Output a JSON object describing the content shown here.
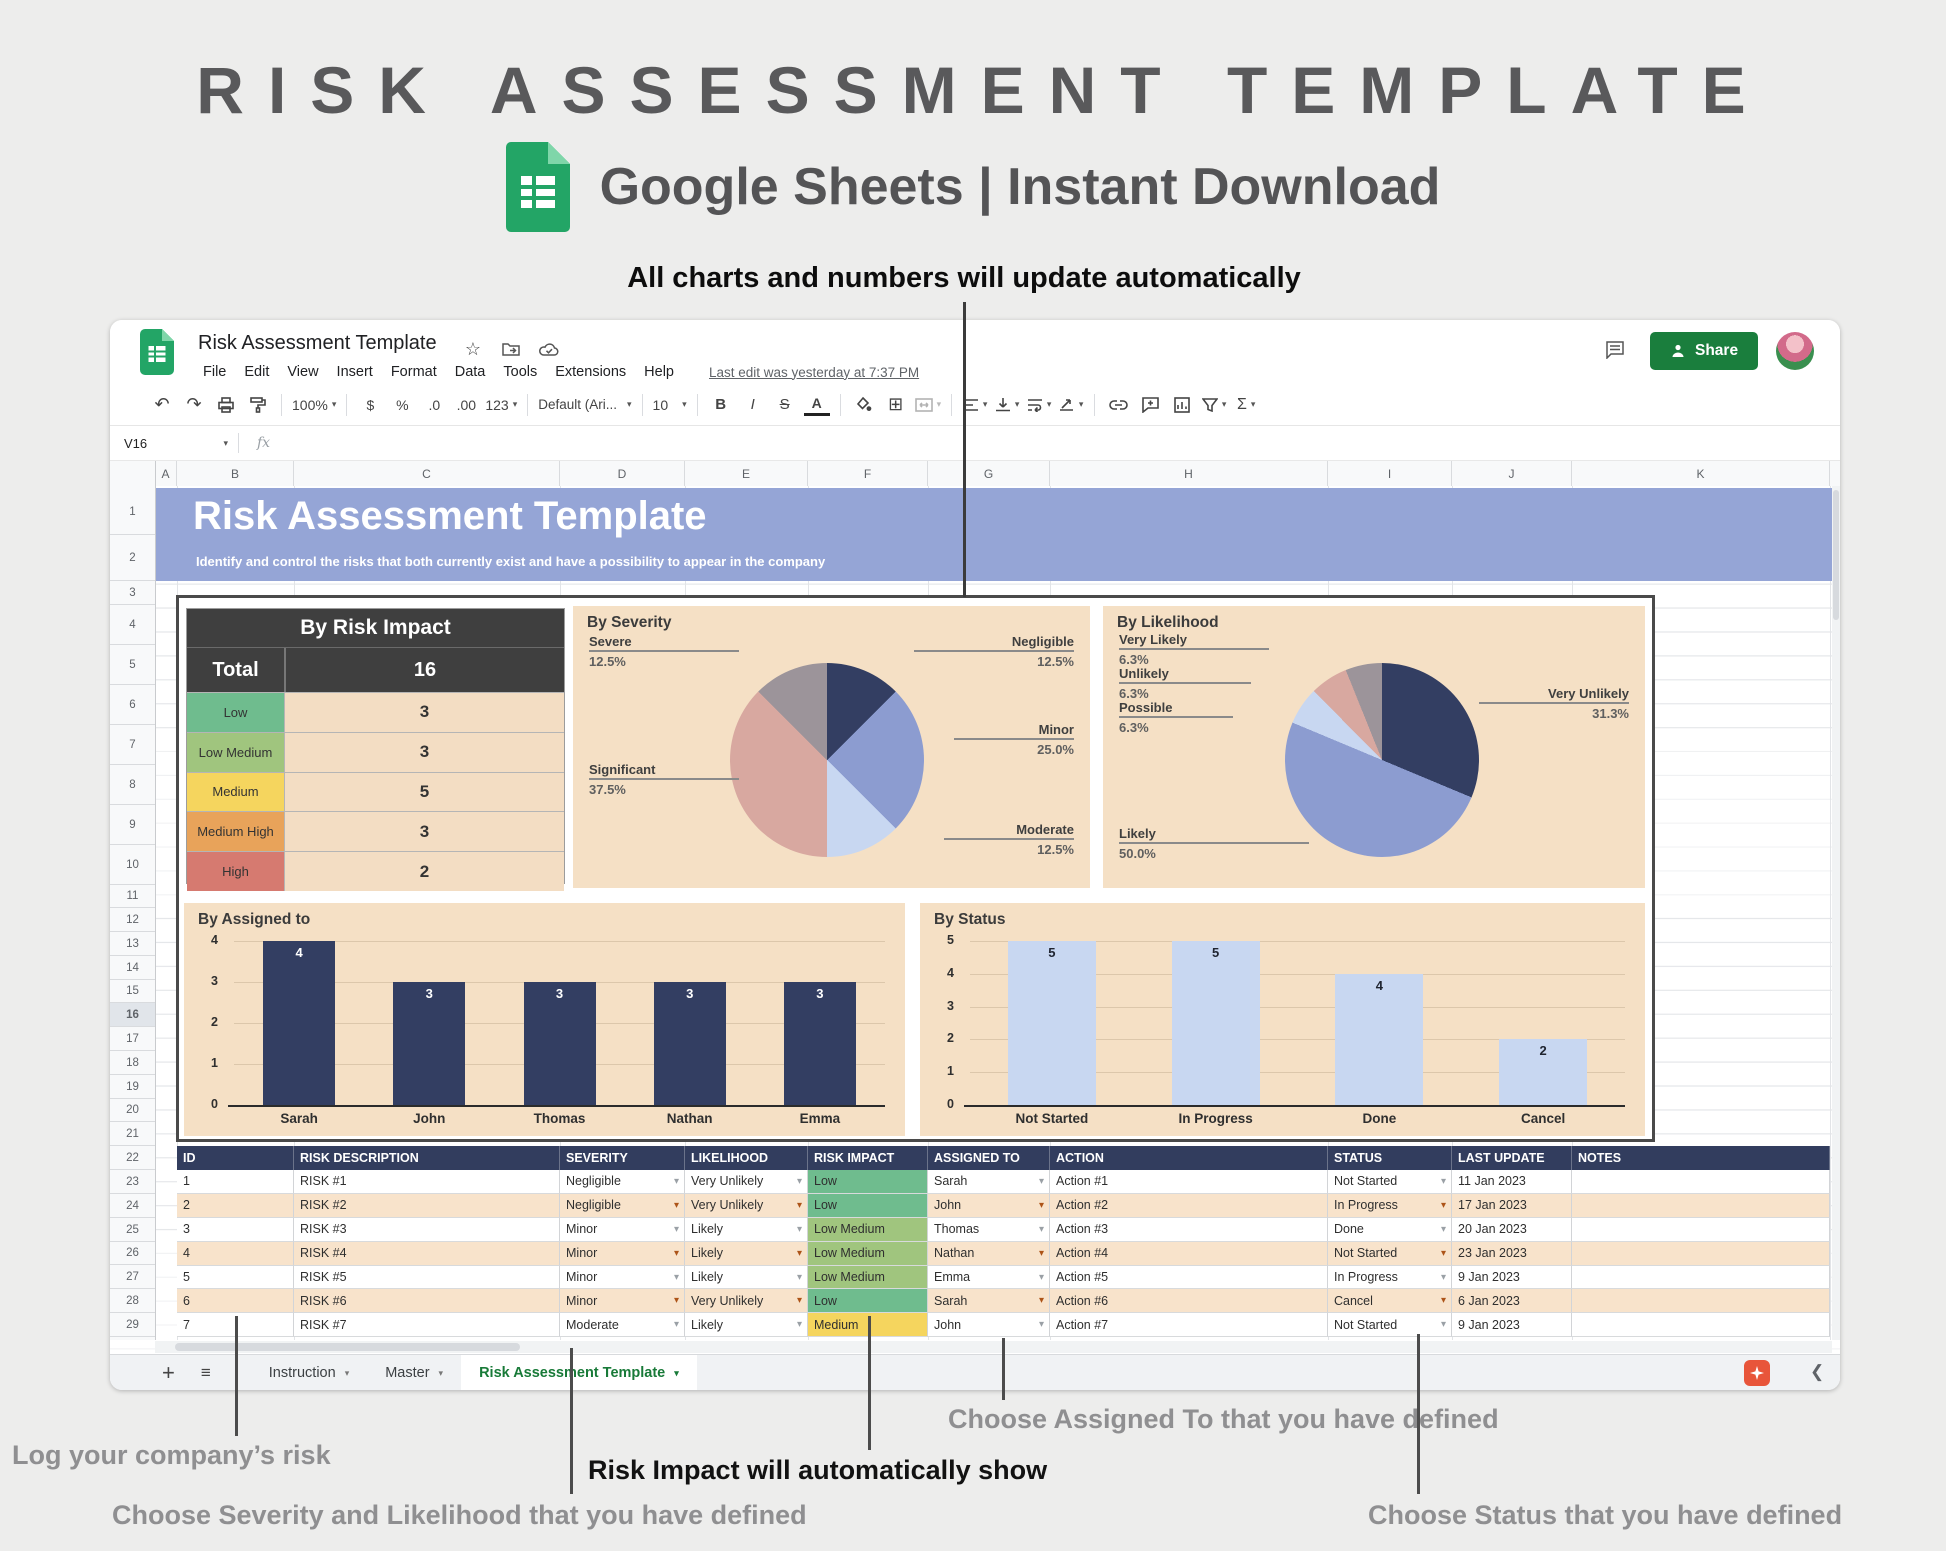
{
  "hero": {
    "title": "RISK ASSESSMENT TEMPLATE",
    "subtitle": "Google Sheets | Instant Download"
  },
  "annotations": {
    "top": "All charts and numbers will update automatically",
    "log_risk": "Log your company’s risk",
    "severity_note": "Choose Severity and Likelihood that you have defined",
    "impact_note": "Risk Impact will automatically show",
    "assigned_note": "Choose Assigned To that you have defined",
    "status_note": "Choose Status that you have defined"
  },
  "titlebar": {
    "doc_title": "Risk Assessment Template",
    "share": "Share"
  },
  "menubar": {
    "items": [
      "File",
      "Edit",
      "View",
      "Insert",
      "Format",
      "Data",
      "Tools",
      "Extensions",
      "Help"
    ],
    "last_edit": "Last edit was yesterday at 7:37 PM"
  },
  "toolbar": {
    "zoom": "100%",
    "currency": "$",
    "percent": "%",
    "dec_decimal": ".0",
    "inc_decimal": ".00",
    "more_formats": "123",
    "font": "Default (Ari...",
    "font_size": "10",
    "bold": "B",
    "italic": "I",
    "strike": "S",
    "text_color": "A",
    "functions": "Σ"
  },
  "formula_bar": {
    "name_box": "V16",
    "fx": "fx"
  },
  "grid": {
    "columns": [
      "A",
      "B",
      "C",
      "D",
      "E",
      "F",
      "G",
      "H",
      "I",
      "J",
      "K"
    ],
    "rows": [
      1,
      2,
      3,
      4,
      5,
      6,
      7,
      8,
      9,
      10,
      11,
      12,
      13,
      14,
      15,
      16,
      17,
      18,
      19,
      20,
      21,
      22,
      23,
      24,
      25,
      26,
      27,
      28,
      29
    ],
    "banner": {
      "title": "Risk Assessment Template",
      "subtitle": "Identify and control the risks that both currently exist and have a possibility to appear in the company"
    }
  },
  "impact_summary": {
    "title": "By Risk Impact",
    "total_label": "Total",
    "total_value": "16",
    "rows": [
      {
        "label": "Low",
        "value": "3",
        "color": "#6fbc8e"
      },
      {
        "label": "Low Medium",
        "value": "3",
        "color": "#a0c57e"
      },
      {
        "label": "Medium",
        "value": "5",
        "color": "#f5d55e"
      },
      {
        "label": "Medium High",
        "value": "3",
        "color": "#e8a35a"
      },
      {
        "label": "High",
        "value": "2",
        "color": "#d67a70"
      }
    ]
  },
  "chart_data": [
    {
      "type": "pie",
      "title": "By Severity",
      "labels": [
        "Negligible",
        "Minor",
        "Moderate",
        "Significant",
        "Severe"
      ],
      "values": [
        12.5,
        25.0,
        12.5,
        37.5,
        12.5
      ],
      "colors": [
        "#333e62",
        "#8c9cd0",
        "#c8d7f1",
        "#d8a8a0",
        "#9c949a"
      ],
      "callouts": [
        {
          "label": "Severe",
          "value": "12.5%"
        },
        {
          "label": "Negligible",
          "value": "12.5%"
        },
        {
          "label": "Minor",
          "value": "25.0%"
        },
        {
          "label": "Moderate",
          "value": "12.5%"
        },
        {
          "label": "Significant",
          "value": "37.5%"
        }
      ]
    },
    {
      "type": "pie",
      "title": "By Likelihood",
      "labels": [
        "Very Unlikely",
        "Likely",
        "Possible",
        "Unlikely",
        "Very Likely"
      ],
      "values": [
        31.3,
        50.0,
        6.3,
        6.3,
        6.3
      ],
      "colors": [
        "#333e62",
        "#8c9cd0",
        "#c8d7f1",
        "#d8a8a0",
        "#9c949a"
      ],
      "callouts": [
        {
          "label": "Very Likely",
          "value": "6.3%"
        },
        {
          "label": "Unlikely",
          "value": "6.3%"
        },
        {
          "label": "Possible",
          "value": "6.3%"
        },
        {
          "label": "Likely",
          "value": "50.0%"
        },
        {
          "label": "Very Unlikely",
          "value": "31.3%"
        }
      ]
    },
    {
      "type": "bar",
      "title": "By Assigned to",
      "categories": [
        "Sarah",
        "John",
        "Thomas",
        "Nathan",
        "Emma"
      ],
      "values": [
        4,
        3,
        3,
        3,
        3
      ],
      "ylim": [
        0,
        4
      ],
      "yticks": [
        0,
        1,
        2,
        3,
        4
      ],
      "bar_color": "#333e62",
      "value_color": "#ffffff"
    },
    {
      "type": "bar",
      "title": "By Status",
      "categories": [
        "Not Started",
        "In Progress",
        "Done",
        "Cancel"
      ],
      "values": [
        5,
        5,
        4,
        2
      ],
      "ylim": [
        0,
        5
      ],
      "yticks": [
        0,
        1,
        2,
        3,
        4,
        5
      ],
      "bar_color": "#c8d7f1",
      "value_color": "#1f2430"
    }
  ],
  "risk_table": {
    "headers": [
      "ID",
      "RISK DESCRIPTION",
      "SEVERITY",
      "LIKELIHOOD",
      "RISK IMPACT",
      "ASSIGNED TO",
      "ACTION",
      "STATUS",
      "LAST UPDATE",
      "NOTES"
    ],
    "impact_colors": {
      "Low": "#6fbc8e",
      "Low Medium": "#a0c57e",
      "Medium": "#f5d55e"
    },
    "rows": [
      {
        "id": "1",
        "description": "RISK #1",
        "severity": "Negligible",
        "likelihood": "Very Unlikely",
        "impact": "Low",
        "assigned": "Sarah",
        "action": "Action #1",
        "status": "Not Started",
        "updated": "11 Jan 2023",
        "notes": ""
      },
      {
        "id": "2",
        "description": "RISK #2",
        "severity": "Negligible",
        "likelihood": "Very Unlikely",
        "impact": "Low",
        "assigned": "John",
        "action": "Action #2",
        "status": "In Progress",
        "updated": "17 Jan 2023",
        "notes": ""
      },
      {
        "id": "3",
        "description": "RISK #3",
        "severity": "Minor",
        "likelihood": "Likely",
        "impact": "Low Medium",
        "assigned": "Thomas",
        "action": "Action #3",
        "status": "Done",
        "updated": "20 Jan 2023",
        "notes": ""
      },
      {
        "id": "4",
        "description": "RISK #4",
        "severity": "Minor",
        "likelihood": "Likely",
        "impact": "Low Medium",
        "assigned": "Nathan",
        "action": "Action #4",
        "status": "Not Started",
        "updated": "23 Jan 2023",
        "notes": ""
      },
      {
        "id": "5",
        "description": "RISK #5",
        "severity": "Minor",
        "likelihood": "Likely",
        "impact": "Low Medium",
        "assigned": "Emma",
        "action": "Action #5",
        "status": "In Progress",
        "updated": "9 Jan 2023",
        "notes": ""
      },
      {
        "id": "6",
        "description": "RISK #6",
        "severity": "Minor",
        "likelihood": "Very Unlikely",
        "impact": "Low",
        "assigned": "Sarah",
        "action": "Action #6",
        "status": "Cancel",
        "updated": "6 Jan 2023",
        "notes": ""
      },
      {
        "id": "7",
        "description": "RISK #7",
        "severity": "Moderate",
        "likelihood": "Likely",
        "impact": "Medium",
        "assigned": "John",
        "action": "Action #7",
        "status": "Not Started",
        "updated": "9 Jan 2023",
        "notes": ""
      }
    ]
  },
  "tabbar": {
    "tabs": [
      {
        "label": "Instruction",
        "active": false
      },
      {
        "label": "Master",
        "active": false
      },
      {
        "label": "Risk Assessment Template",
        "active": true
      }
    ]
  }
}
